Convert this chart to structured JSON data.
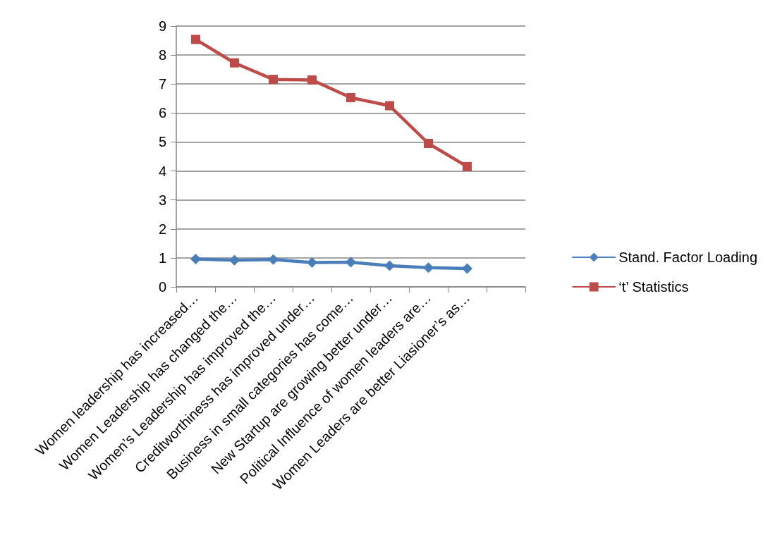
{
  "chart_data": {
    "type": "line",
    "categories": [
      "Women leadership has increased…",
      "Women Leadership has changed the…",
      "Women’s Leadership has improved the…",
      "Creditworthiness has improved under…",
      "Business in small categories has come…",
      "New Startup are growing better under…",
      "Political Influence of women leaders are…",
      "Women Leaders are better Liasioner’s as…",
      null
    ],
    "series": [
      {
        "name": "Stand. Factor Loading",
        "color": "#4a7ebb",
        "marker": "diamond",
        "values": [
          0.96,
          0.92,
          0.94,
          0.84,
          0.85,
          0.73,
          0.66,
          0.63,
          null
        ]
      },
      {
        "name": "‘t’ Statistics",
        "color": "#be4b48",
        "marker": "square",
        "values": [
          8.54,
          7.73,
          7.16,
          7.14,
          6.53,
          6.25,
          4.95,
          4.15,
          null
        ]
      }
    ],
    "ylim": [
      0,
      9
    ],
    "yticks": [
      0,
      1,
      2,
      3,
      4,
      5,
      6,
      7,
      8,
      9
    ],
    "grid": "y",
    "legend": "right",
    "line_style": "solid"
  }
}
